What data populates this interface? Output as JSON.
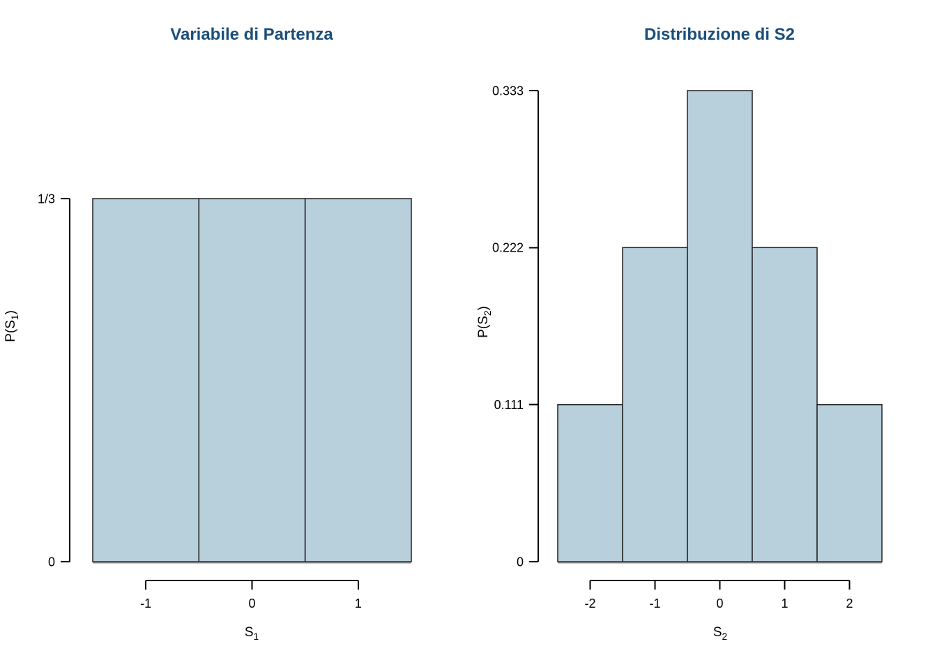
{
  "figure": {
    "background": "#ffffff"
  },
  "colors": {
    "title": "#1b4e79",
    "bar_fill": "#b8cfdc",
    "bar_border": "#222222",
    "bar_bottom_shadow": "#8e8e8e",
    "axis": "#000000",
    "tick_text": "#000000"
  },
  "chart_data": [
    {
      "type": "bar",
      "title": "Variabile di Partenza",
      "xlabel": {
        "pre": "S",
        "sub": "1",
        "post": ""
      },
      "ylabel": {
        "pre": "P(S",
        "sub": "1",
        "post": ")"
      },
      "categories": [
        "-1",
        "0",
        "1"
      ],
      "values": [
        0.3333,
        0.3333,
        0.3333
      ],
      "bin_edges": [
        -1.5,
        -0.5,
        0.5,
        1.5
      ],
      "xlim": [
        -1.5,
        1.5
      ],
      "ylim": [
        0,
        0.3333
      ],
      "x_ticks": [
        {
          "value": -1,
          "label": "-1"
        },
        {
          "value": 0,
          "label": "0"
        },
        {
          "value": 1,
          "label": "1"
        }
      ],
      "y_ticks": [
        {
          "value": 0,
          "label": "0"
        },
        {
          "value": 0.3333,
          "label": "1/3"
        }
      ],
      "grid": false,
      "legend": null
    },
    {
      "type": "bar",
      "title": "Distribuzione di S2",
      "xlabel": {
        "pre": "S",
        "sub": "2",
        "post": ""
      },
      "ylabel": {
        "pre": "P(S",
        "sub": "2",
        "post": ")"
      },
      "categories": [
        "-2",
        "-1",
        "0",
        "1",
        "2"
      ],
      "values": [
        0.111,
        0.222,
        0.333,
        0.222,
        0.111
      ],
      "bin_edges": [
        -2.5,
        -1.5,
        -0.5,
        0.5,
        1.5,
        2.5
      ],
      "xlim": [
        -2.5,
        2.5
      ],
      "ylim": [
        0,
        0.333
      ],
      "x_ticks": [
        {
          "value": -2,
          "label": "-2"
        },
        {
          "value": -1,
          "label": "-1"
        },
        {
          "value": 0,
          "label": "0"
        },
        {
          "value": 1,
          "label": "1"
        },
        {
          "value": 2,
          "label": "2"
        }
      ],
      "y_ticks": [
        {
          "value": 0,
          "label": "0"
        },
        {
          "value": 0.111,
          "label": "0.111"
        },
        {
          "value": 0.222,
          "label": "0.222"
        },
        {
          "value": 0.333,
          "label": "0.333"
        }
      ],
      "grid": false,
      "legend": null
    }
  ]
}
